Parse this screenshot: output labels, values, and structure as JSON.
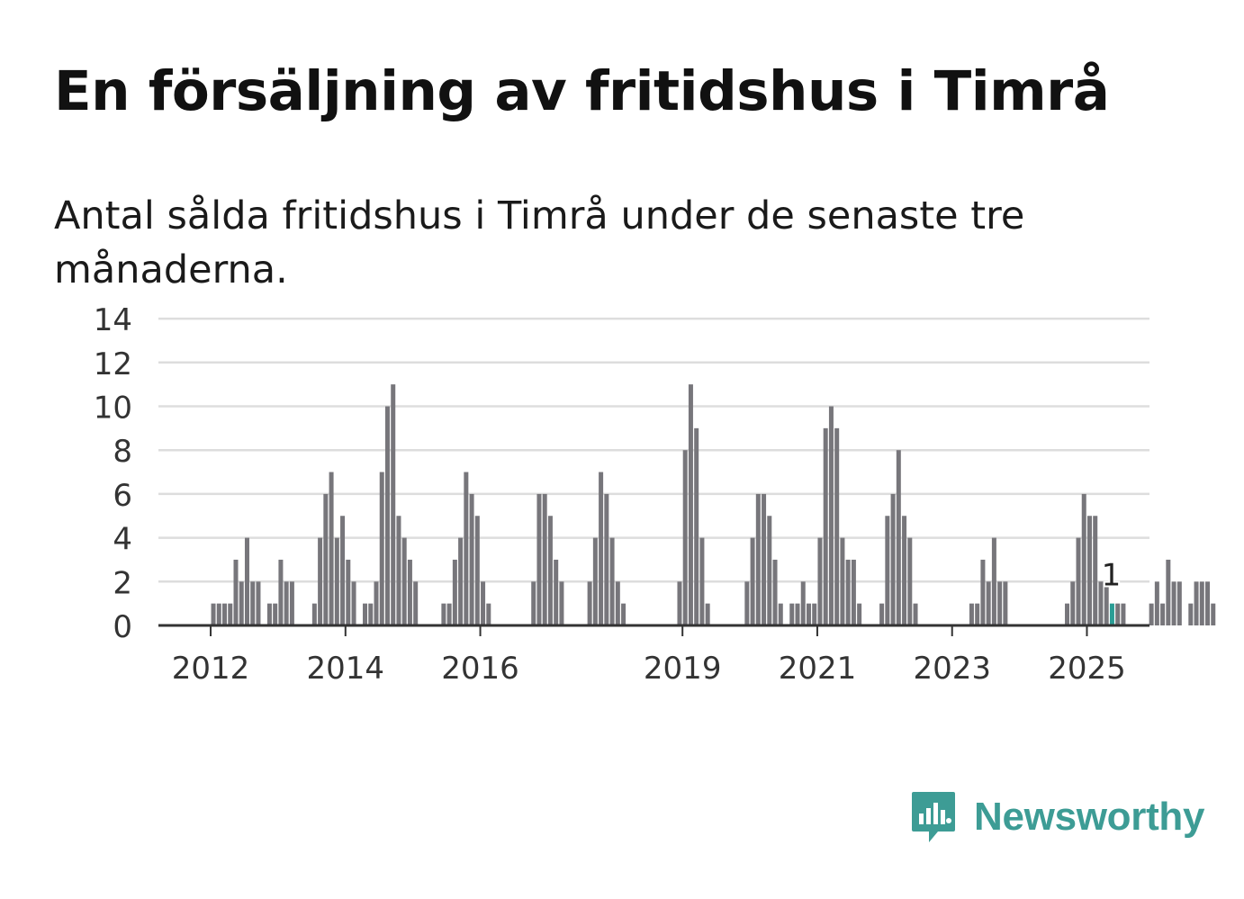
{
  "title": "En försäljning av fritidshus i Timrå",
  "subtitle": "Antal sålda fritidshus i Timrå under de senaste tre månaderna.",
  "brand": {
    "name": "Newsworthy"
  },
  "colors": {
    "bar": "#77767b",
    "highlight": "#2a9d95",
    "grid": "#dddddd",
    "axis": "#333333",
    "brand": "#3d9c95"
  },
  "chart_data": {
    "type": "bar",
    "title": "En försäljning av fritidshus i Timrå",
    "subtitle": "Antal sålda fritidshus i Timrå under de senaste tre månaderna.",
    "xlabel": "",
    "ylabel": "",
    "ylim": [
      0,
      14
    ],
    "yticks": [
      0,
      2,
      4,
      6,
      8,
      10,
      12,
      14
    ],
    "xticks": [
      "2012",
      "2014",
      "2016",
      "2019",
      "2021",
      "2023",
      "2025"
    ],
    "xtick_months": [
      "2012-01",
      "2014-01",
      "2016-01",
      "2019-01",
      "2021-01",
      "2023-01",
      "2025-01"
    ],
    "start_month": "2011-02",
    "grid": true,
    "highlight": {
      "month": "2025-05",
      "value": 1,
      "label": "1"
    },
    "values": [
      0,
      0,
      0,
      0,
      0,
      0,
      0,
      0,
      0,
      0,
      0,
      1,
      1,
      1,
      1,
      3,
      2,
      4,
      2,
      2,
      0,
      1,
      1,
      3,
      2,
      2,
      0,
      0,
      0,
      1,
      4,
      6,
      7,
      4,
      5,
      3,
      2,
      0,
      1,
      1,
      2,
      7,
      10,
      11,
      5,
      4,
      3,
      2,
      0,
      0,
      0,
      0,
      1,
      1,
      3,
      4,
      7,
      6,
      5,
      2,
      1,
      0,
      0,
      0,
      0,
      0,
      0,
      0,
      2,
      6,
      6,
      5,
      3,
      2,
      0,
      0,
      0,
      0,
      2,
      4,
      7,
      6,
      4,
      2,
      1,
      0,
      0,
      0,
      0,
      0,
      0,
      0,
      0,
      0,
      2,
      8,
      11,
      9,
      4,
      1,
      0,
      0,
      0,
      0,
      0,
      0,
      2,
      4,
      6,
      6,
      5,
      3,
      1,
      0,
      1,
      1,
      2,
      1,
      1,
      4,
      9,
      10,
      9,
      4,
      3,
      3,
      1,
      0,
      0,
      0,
      1,
      5,
      6,
      8,
      5,
      4,
      1,
      0,
      0,
      0,
      0,
      0,
      0,
      0,
      0,
      0,
      1,
      1,
      3,
      2,
      4,
      2,
      2,
      0,
      0,
      0,
      0,
      0,
      0,
      0,
      0,
      0,
      0,
      1,
      2,
      4,
      6,
      5,
      5,
      2,
      2,
      1,
      1,
      1,
      0,
      0,
      0,
      0,
      1,
      2,
      1,
      3,
      2,
      2,
      0,
      1,
      2,
      2,
      2,
      1
    ]
  }
}
